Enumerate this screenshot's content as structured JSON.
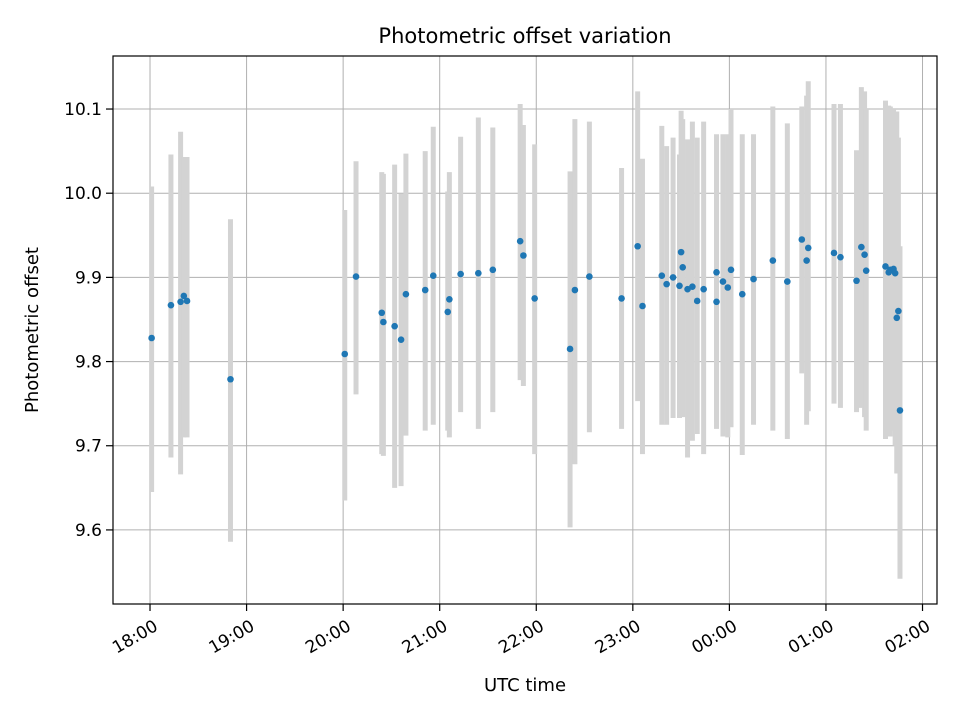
{
  "chart_data": {
    "type": "scatter",
    "title": "Photometric offset variation",
    "xlabel": "UTC time",
    "ylabel": "Photometric offset",
    "grid": true,
    "legend": "none",
    "x_axis_kind": "time",
    "x_tick_labels": [
      "18:00",
      "19:00",
      "20:00",
      "21:00",
      "22:00",
      "23:00",
      "00:00",
      "01:00",
      "02:00"
    ],
    "xlim": [
      "17:37",
      "02:09"
    ],
    "ylim": [
      9.512,
      10.163
    ],
    "y_ticks": [
      9.6,
      9.7,
      9.8,
      9.9,
      10.0,
      10.1
    ],
    "y_tick_labels": [
      "9.6",
      "9.7",
      "9.8",
      "9.9",
      "10.0",
      "10.1"
    ],
    "colors": {
      "point": "#1f77b4",
      "errorbar": "#d3d3d3",
      "grid": "#b0b0b0"
    },
    "series": [
      {
        "x": [
          "18:01",
          "18:13",
          "18:19",
          "18:21",
          "18:23",
          "18:50",
          "20:01",
          "20:08",
          "20:24",
          "20:25",
          "20:32",
          "20:36",
          "20:39",
          "20:51",
          "20:56",
          "21:05",
          "21:06",
          "21:13",
          "21:24",
          "21:33",
          "21:50",
          "21:52",
          "21:59",
          "22:21",
          "22:24",
          "22:33",
          "22:53",
          "23:03",
          "23:06",
          "23:18",
          "23:21",
          "23:25",
          "23:29",
          "23:30",
          "23:31",
          "23:34",
          "23:37",
          "23:40",
          "23:44",
          "23:52",
          "23:52",
          "23:56",
          "23:59",
          "24:01",
          "24:08",
          "24:15",
          "24:27",
          "24:36",
          "24:45",
          "24:48",
          "24:49",
          "25:05",
          "25:09",
          "25:19",
          "25:22",
          "25:24",
          "25:25",
          "25:37",
          "25:39",
          "25:40",
          "25:42",
          "25:43",
          "25:44",
          "25:45",
          "25:46"
        ],
        "y": [
          9.828,
          9.867,
          9.871,
          9.878,
          9.872,
          9.779,
          9.809,
          9.901,
          9.858,
          9.847,
          9.842,
          9.826,
          9.88,
          9.885,
          9.902,
          9.859,
          9.874,
          9.904,
          9.905,
          9.909,
          9.943,
          9.926,
          9.875,
          9.815,
          9.885,
          9.901,
          9.875,
          9.937,
          9.866,
          9.902,
          9.892,
          9.9,
          9.89,
          9.93,
          9.912,
          9.886,
          9.889,
          9.872,
          9.886,
          9.906,
          9.871,
          9.895,
          9.888,
          9.909,
          9.88,
          9.898,
          9.92,
          9.895,
          9.945,
          9.92,
          9.935,
          9.929,
          9.924,
          9.896,
          9.936,
          9.927,
          9.908,
          9.913,
          9.906,
          9.909,
          9.91,
          9.905,
          9.852,
          9.86,
          9.742
        ],
        "err_low": [
          9.645,
          9.686,
          9.666,
          9.71,
          9.71,
          9.586,
          9.635,
          9.761,
          9.69,
          9.688,
          9.65,
          9.652,
          9.712,
          9.718,
          9.725,
          9.718,
          9.71,
          9.74,
          9.72,
          9.74,
          9.778,
          9.771,
          9.69,
          9.603,
          9.678,
          9.716,
          9.72,
          9.753,
          9.69,
          9.725,
          9.725,
          9.733,
          9.733,
          9.754,
          9.734,
          9.686,
          9.706,
          9.714,
          9.69,
          9.72,
          9.729,
          9.711,
          9.71,
          9.722,
          9.689,
          9.725,
          9.718,
          9.708,
          9.786,
          9.725,
          9.741,
          9.75,
          9.745,
          9.74,
          9.745,
          9.734,
          9.718,
          9.708,
          9.711,
          9.711,
          9.718,
          9.7,
          9.667,
          9.685,
          9.542
        ],
        "err_high": [
          10.008,
          10.046,
          10.073,
          10.043,
          10.043,
          9.969,
          9.98,
          10.038,
          10.025,
          10.023,
          10.034,
          9.999,
          10.047,
          10.05,
          10.079,
          10.002,
          10.025,
          10.067,
          10.09,
          10.078,
          10.106,
          10.081,
          10.058,
          10.026,
          10.088,
          10.085,
          10.03,
          10.121,
          10.041,
          10.08,
          10.056,
          10.066,
          10.046,
          10.098,
          10.088,
          10.064,
          10.085,
          10.066,
          10.085,
          10.07,
          10.015,
          10.07,
          10.07,
          10.1,
          10.07,
          10.07,
          10.103,
          10.083,
          10.103,
          10.116,
          10.133,
          10.106,
          10.106,
          10.051,
          10.126,
          10.121,
          10.1,
          10.11,
          10.104,
          10.103,
          10.1,
          10.085,
          10.097,
          10.066,
          9.937
        ]
      }
    ]
  }
}
